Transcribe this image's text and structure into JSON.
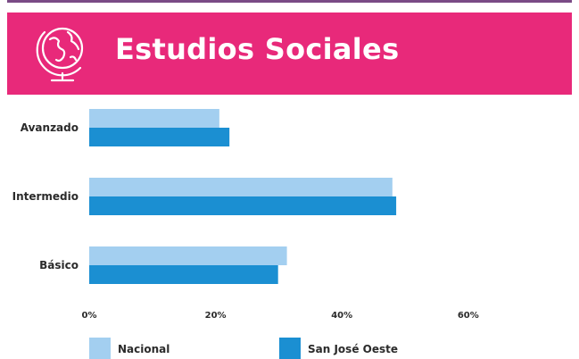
{
  "header": {
    "title": "Estudios Sociales",
    "icon": "globe-icon"
  },
  "colors": {
    "banner": "#e8297a",
    "rule": "#7a4b86",
    "nacional": "#a3cff0",
    "region": "#1b8fd2"
  },
  "chart_data": {
    "type": "bar",
    "orientation": "horizontal",
    "categories": [
      "Avanzado",
      "Intermedio",
      "Básico"
    ],
    "series": [
      {
        "name": "Nacional",
        "values": [
          20.6,
          48.0,
          31.3
        ]
      },
      {
        "name": "San José Oeste",
        "values": [
          22.2,
          48.6,
          29.9
        ]
      }
    ],
    "xlim": [
      0,
      60
    ],
    "xticks": [
      "0%",
      "20%",
      "40%",
      "60%"
    ],
    "legend": "bottom",
    "grid": false
  }
}
